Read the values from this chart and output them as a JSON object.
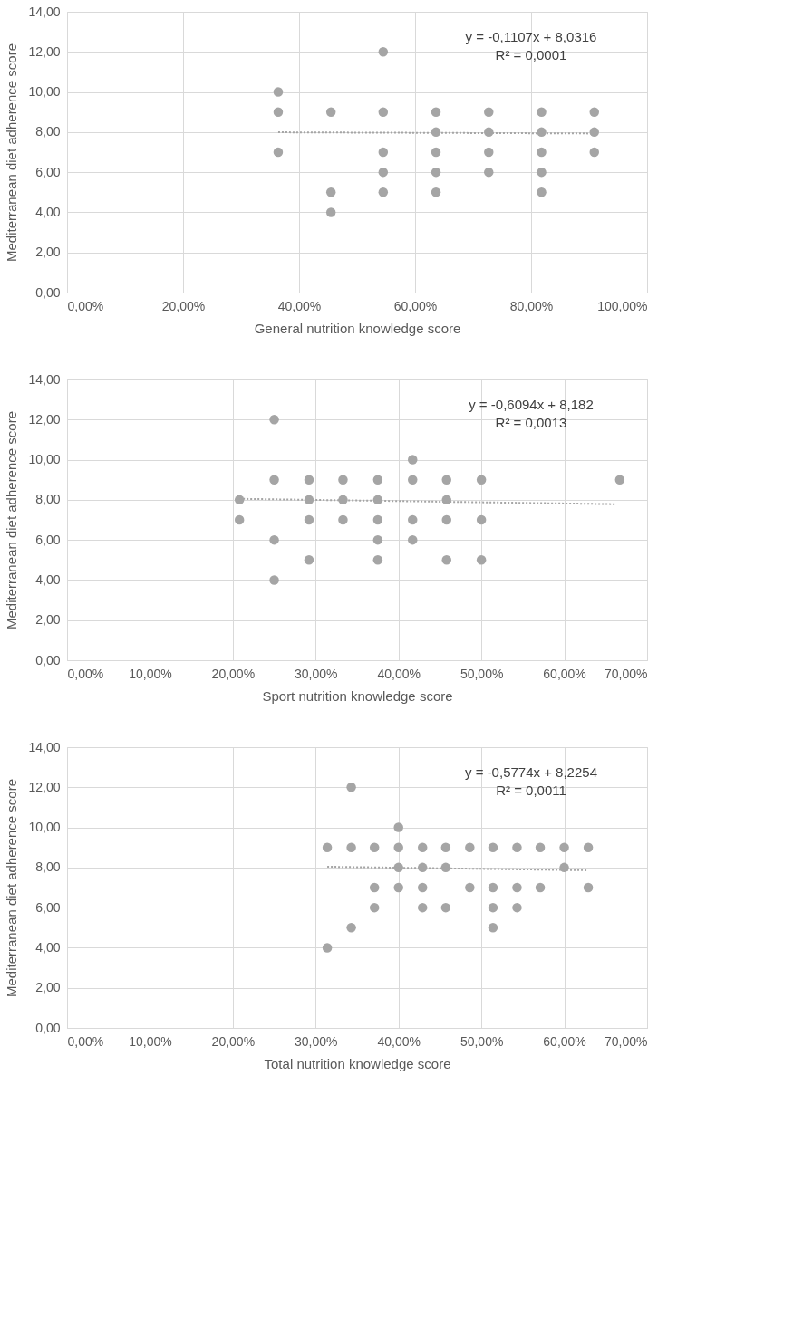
{
  "chart_data": [
    {
      "type": "scatter",
      "xlabel": "General nutrition knowledge score",
      "ylabel": "Mediterranean diet adherence score",
      "grid": true,
      "xlim": [
        0,
        100
      ],
      "xticks": [
        {
          "value": 0,
          "label": "0,00%"
        },
        {
          "value": 20,
          "label": "20,00%"
        },
        {
          "value": 40,
          "label": "40,00%"
        },
        {
          "value": 60,
          "label": "60,00%"
        },
        {
          "value": 80,
          "label": "80,00%"
        },
        {
          "value": 100,
          "label": "100,00%"
        }
      ],
      "ylim": [
        0,
        14
      ],
      "yticks": [
        {
          "value": 0,
          "label": "0,00"
        },
        {
          "value": 2,
          "label": "2,00"
        },
        {
          "value": 4,
          "label": "4,00"
        },
        {
          "value": 6,
          "label": "6,00"
        },
        {
          "value": 8,
          "label": "8,00"
        },
        {
          "value": 10,
          "label": "10,00"
        },
        {
          "value": 12,
          "label": "12,00"
        },
        {
          "value": 14,
          "label": "14,00"
        }
      ],
      "annotations": [
        "y = -0,1107x + 8,0316",
        "R² = 0,0001"
      ],
      "series": [
        {
          "type": "scatter",
          "marker": "circle",
          "color": "#a5a5a5",
          "x": [
            36.4,
            36.4,
            36.4,
            45.5,
            45.5,
            45.5,
            54.5,
            54.5,
            54.5,
            54.5,
            54.5,
            63.6,
            63.6,
            63.6,
            63.6,
            63.6,
            72.7,
            72.7,
            72.7,
            72.7,
            81.8,
            81.8,
            81.8,
            81.8,
            81.8,
            90.9,
            90.9,
            90.9
          ],
          "values": [
            10,
            9,
            7,
            9,
            5,
            4,
            12,
            9,
            7,
            6,
            5,
            9,
            8,
            7,
            6,
            5,
            9,
            8,
            7,
            6,
            9,
            8,
            7,
            6,
            5,
            9,
            8,
            7
          ]
        },
        {
          "type": "line",
          "line_style": "dotted",
          "color": "#a5a5a5",
          "x": [
            36.4,
            90.9
          ],
          "values": [
            7.99,
            7.93
          ]
        }
      ]
    },
    {
      "type": "scatter",
      "xlabel": "Sport nutrition knowledge score",
      "ylabel": "Mediterranean diet adherence score",
      "grid": true,
      "xlim": [
        0,
        70
      ],
      "xticks": [
        {
          "value": 0,
          "label": "0,00%"
        },
        {
          "value": 10,
          "label": "10,00%"
        },
        {
          "value": 20,
          "label": "20,00%"
        },
        {
          "value": 30,
          "label": "30,00%"
        },
        {
          "value": 40,
          "label": "40,00%"
        },
        {
          "value": 50,
          "label": "50,00%"
        },
        {
          "value": 60,
          "label": "60,00%"
        },
        {
          "value": 70,
          "label": "70,00%"
        }
      ],
      "ylim": [
        0,
        14
      ],
      "yticks": [
        {
          "value": 0,
          "label": "0,00"
        },
        {
          "value": 2,
          "label": "2,00"
        },
        {
          "value": 4,
          "label": "4,00"
        },
        {
          "value": 6,
          "label": "6,00"
        },
        {
          "value": 8,
          "label": "8,00"
        },
        {
          "value": 10,
          "label": "10,00"
        },
        {
          "value": 12,
          "label": "12,00"
        },
        {
          "value": 14,
          "label": "14,00"
        }
      ],
      "annotations": [
        "y = -0,6094x + 8,182",
        "R² = 0,0013"
      ],
      "series": [
        {
          "type": "scatter",
          "marker": "circle",
          "color": "#a5a5a5",
          "x": [
            20.8,
            20.8,
            25,
            25,
            25,
            25,
            29.2,
            29.2,
            29.2,
            29.2,
            33.3,
            33.3,
            33.3,
            37.5,
            37.5,
            37.5,
            37.5,
            37.5,
            41.7,
            41.7,
            41.7,
            41.7,
            45.8,
            45.8,
            45.8,
            45.8,
            50,
            50,
            50,
            66.7
          ],
          "values": [
            8,
            7,
            12,
            9,
            6,
            4,
            9,
            8,
            7,
            5,
            9,
            8,
            7,
            9,
            8,
            7,
            6,
            5,
            10,
            9,
            7,
            6,
            9,
            8,
            7,
            5,
            9,
            7,
            5,
            9
          ]
        },
        {
          "type": "line",
          "line_style": "dotted",
          "color": "#a5a5a5",
          "x": [
            20.8,
            66.3
          ],
          "values": [
            8.05,
            7.78
          ]
        }
      ]
    },
    {
      "type": "scatter",
      "xlabel": "Total  nutrition knowledge score",
      "ylabel": "Mediterranean diet adherence score",
      "grid": true,
      "xlim": [
        0,
        70
      ],
      "xticks": [
        {
          "value": 0,
          "label": "0,00%"
        },
        {
          "value": 10,
          "label": "10,00%"
        },
        {
          "value": 20,
          "label": "20,00%"
        },
        {
          "value": 30,
          "label": "30,00%"
        },
        {
          "value": 40,
          "label": "40,00%"
        },
        {
          "value": 50,
          "label": "50,00%"
        },
        {
          "value": 60,
          "label": "60,00%"
        },
        {
          "value": 70,
          "label": "70,00%"
        }
      ],
      "ylim": [
        0,
        14
      ],
      "yticks": [
        {
          "value": 0,
          "label": "0,00"
        },
        {
          "value": 2,
          "label": "2,00"
        },
        {
          "value": 4,
          "label": "4,00"
        },
        {
          "value": 6,
          "label": "6,00"
        },
        {
          "value": 8,
          "label": "8,00"
        },
        {
          "value": 10,
          "label": "10,00"
        },
        {
          "value": 12,
          "label": "12,00"
        },
        {
          "value": 14,
          "label": "14,00"
        }
      ],
      "annotations": [
        "y = -0,5774x + 8,2254",
        "R² = 0,0011"
      ],
      "series": [
        {
          "type": "scatter",
          "marker": "circle",
          "color": "#a5a5a5",
          "x": [
            31.4,
            31.4,
            34.3,
            34.3,
            34.3,
            37.1,
            37.1,
            37.1,
            40,
            40,
            40,
            40,
            42.9,
            42.9,
            42.9,
            42.9,
            45.7,
            45.7,
            45.7,
            48.6,
            48.6,
            51.4,
            51.4,
            51.4,
            51.4,
            54.3,
            54.3,
            54.3,
            57.1,
            57.1,
            60,
            60,
            62.9,
            62.9
          ],
          "values": [
            9,
            4,
            12,
            9,
            5,
            9,
            7,
            6,
            10,
            9,
            8,
            7,
            9,
            8,
            7,
            6,
            9,
            8,
            6,
            9,
            7,
            9,
            7,
            6,
            5,
            9,
            7,
            6,
            9,
            7,
            9,
            8,
            9,
            7
          ]
        },
        {
          "type": "line",
          "line_style": "dotted",
          "color": "#a5a5a5",
          "x": [
            31.4,
            62.9
          ],
          "values": [
            8.04,
            7.86
          ]
        }
      ]
    }
  ]
}
